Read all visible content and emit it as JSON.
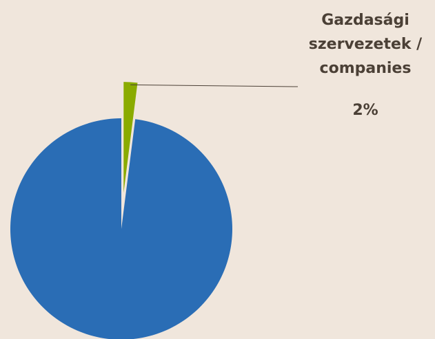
{
  "chart_data": {
    "type": "pie",
    "categories": [
      null,
      "Gazdasági szervezetek / companies"
    ],
    "values": [
      98,
      2
    ],
    "value_labels": [
      null,
      "2%"
    ],
    "colors": [
      "#2a6db5",
      "#8aab00"
    ]
  }
}
